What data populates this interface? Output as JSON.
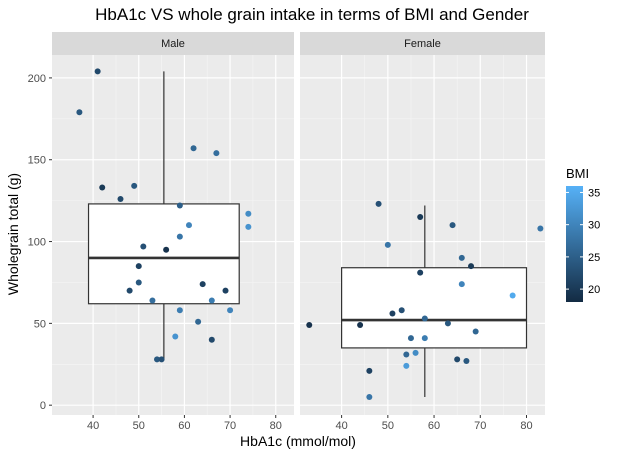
{
  "chart_data": {
    "type": "scatter",
    "title": "HbA1c VS whole grain intake in terms of BMI and Gender",
    "xlabel": "HbA1c (mmol/mol)",
    "ylabel": "Wholegrain total (g)",
    "xlim": [
      31,
      84
    ],
    "ylim": [
      -6,
      214
    ],
    "x_ticks": [
      40,
      50,
      60,
      70,
      80
    ],
    "y_ticks": [
      0,
      50,
      100,
      150,
      200
    ],
    "grid": true,
    "legend": {
      "title": "BMI",
      "placement": "right",
      "ticks": [
        20,
        25,
        30,
        35
      ],
      "range": [
        18,
        36
      ],
      "color_low": "#132b43",
      "color_high": "#56b1f7"
    },
    "facets": [
      {
        "label": "Male",
        "box": {
          "x_min": 39,
          "x_max": 72,
          "q1": 62,
          "median": 90,
          "q3": 123,
          "whisker_low": 28,
          "whisker_high": 204,
          "x_center": 55.5
        },
        "points": [
          {
            "x": 37,
            "y": 179,
            "bmi": 24
          },
          {
            "x": 41,
            "y": 204,
            "bmi": 22
          },
          {
            "x": 42,
            "y": 133,
            "bmi": 20
          },
          {
            "x": 46,
            "y": 126,
            "bmi": 22
          },
          {
            "x": 48,
            "y": 70,
            "bmi": 22
          },
          {
            "x": 49,
            "y": 134,
            "bmi": 24
          },
          {
            "x": 50,
            "y": 85,
            "bmi": 21
          },
          {
            "x": 50,
            "y": 75,
            "bmi": 24
          },
          {
            "x": 51,
            "y": 97,
            "bmi": 23
          },
          {
            "x": 53,
            "y": 64,
            "bmi": 27
          },
          {
            "x": 54,
            "y": 28,
            "bmi": 24
          },
          {
            "x": 55,
            "y": 28,
            "bmi": 23
          },
          {
            "x": 56,
            "y": 95,
            "bmi": 19
          },
          {
            "x": 58,
            "y": 42,
            "bmi": 32
          },
          {
            "x": 59,
            "y": 122,
            "bmi": 25
          },
          {
            "x": 59,
            "y": 103,
            "bmi": 28
          },
          {
            "x": 59,
            "y": 58,
            "bmi": 29
          },
          {
            "x": 61,
            "y": 110,
            "bmi": 30
          },
          {
            "x": 62,
            "y": 157,
            "bmi": 26
          },
          {
            "x": 63,
            "y": 51,
            "bmi": 26
          },
          {
            "x": 64,
            "y": 74,
            "bmi": 21
          },
          {
            "x": 66,
            "y": 64,
            "bmi": 29
          },
          {
            "x": 66,
            "y": 40,
            "bmi": 22
          },
          {
            "x": 67,
            "y": 154,
            "bmi": 27
          },
          {
            "x": 69,
            "y": 70,
            "bmi": 21
          },
          {
            "x": 70,
            "y": 58,
            "bmi": 30
          },
          {
            "x": 74,
            "y": 117,
            "bmi": 31
          },
          {
            "x": 74,
            "y": 109,
            "bmi": 32
          }
        ]
      },
      {
        "label": "Female",
        "box": {
          "x_min": 40,
          "x_max": 80,
          "q1": 35,
          "median": 52,
          "q3": 84,
          "whisker_low": 5,
          "whisker_high": 122,
          "x_center": 58
        },
        "points": [
          {
            "x": 33,
            "y": 49,
            "bmi": 19
          },
          {
            "x": 44,
            "y": 49,
            "bmi": 19
          },
          {
            "x": 46,
            "y": 21,
            "bmi": 21
          },
          {
            "x": 46,
            "y": 5,
            "bmi": 28
          },
          {
            "x": 48,
            "y": 123,
            "bmi": 23
          },
          {
            "x": 50,
            "y": 98,
            "bmi": 28
          },
          {
            "x": 51,
            "y": 56,
            "bmi": 21
          },
          {
            "x": 53,
            "y": 58,
            "bmi": 23
          },
          {
            "x": 54,
            "y": 31,
            "bmi": 26
          },
          {
            "x": 54,
            "y": 24,
            "bmi": 33
          },
          {
            "x": 55,
            "y": 41,
            "bmi": 26
          },
          {
            "x": 56,
            "y": 32,
            "bmi": 31
          },
          {
            "x": 57,
            "y": 81,
            "bmi": 21
          },
          {
            "x": 57,
            "y": 115,
            "bmi": 20
          },
          {
            "x": 58,
            "y": 41,
            "bmi": 29
          },
          {
            "x": 58,
            "y": 53,
            "bmi": 26
          },
          {
            "x": 63,
            "y": 50,
            "bmi": 24
          },
          {
            "x": 64,
            "y": 110,
            "bmi": 24
          },
          {
            "x": 65,
            "y": 28,
            "bmi": 22
          },
          {
            "x": 66,
            "y": 90,
            "bmi": 26
          },
          {
            "x": 66,
            "y": 74,
            "bmi": 30
          },
          {
            "x": 67,
            "y": 27,
            "bmi": 24
          },
          {
            "x": 68,
            "y": 85,
            "bmi": 20
          },
          {
            "x": 69,
            "y": 45,
            "bmi": 26
          },
          {
            "x": 77,
            "y": 67,
            "bmi": 35
          },
          {
            "x": 83,
            "y": 108,
            "bmi": 28
          }
        ]
      }
    ]
  }
}
